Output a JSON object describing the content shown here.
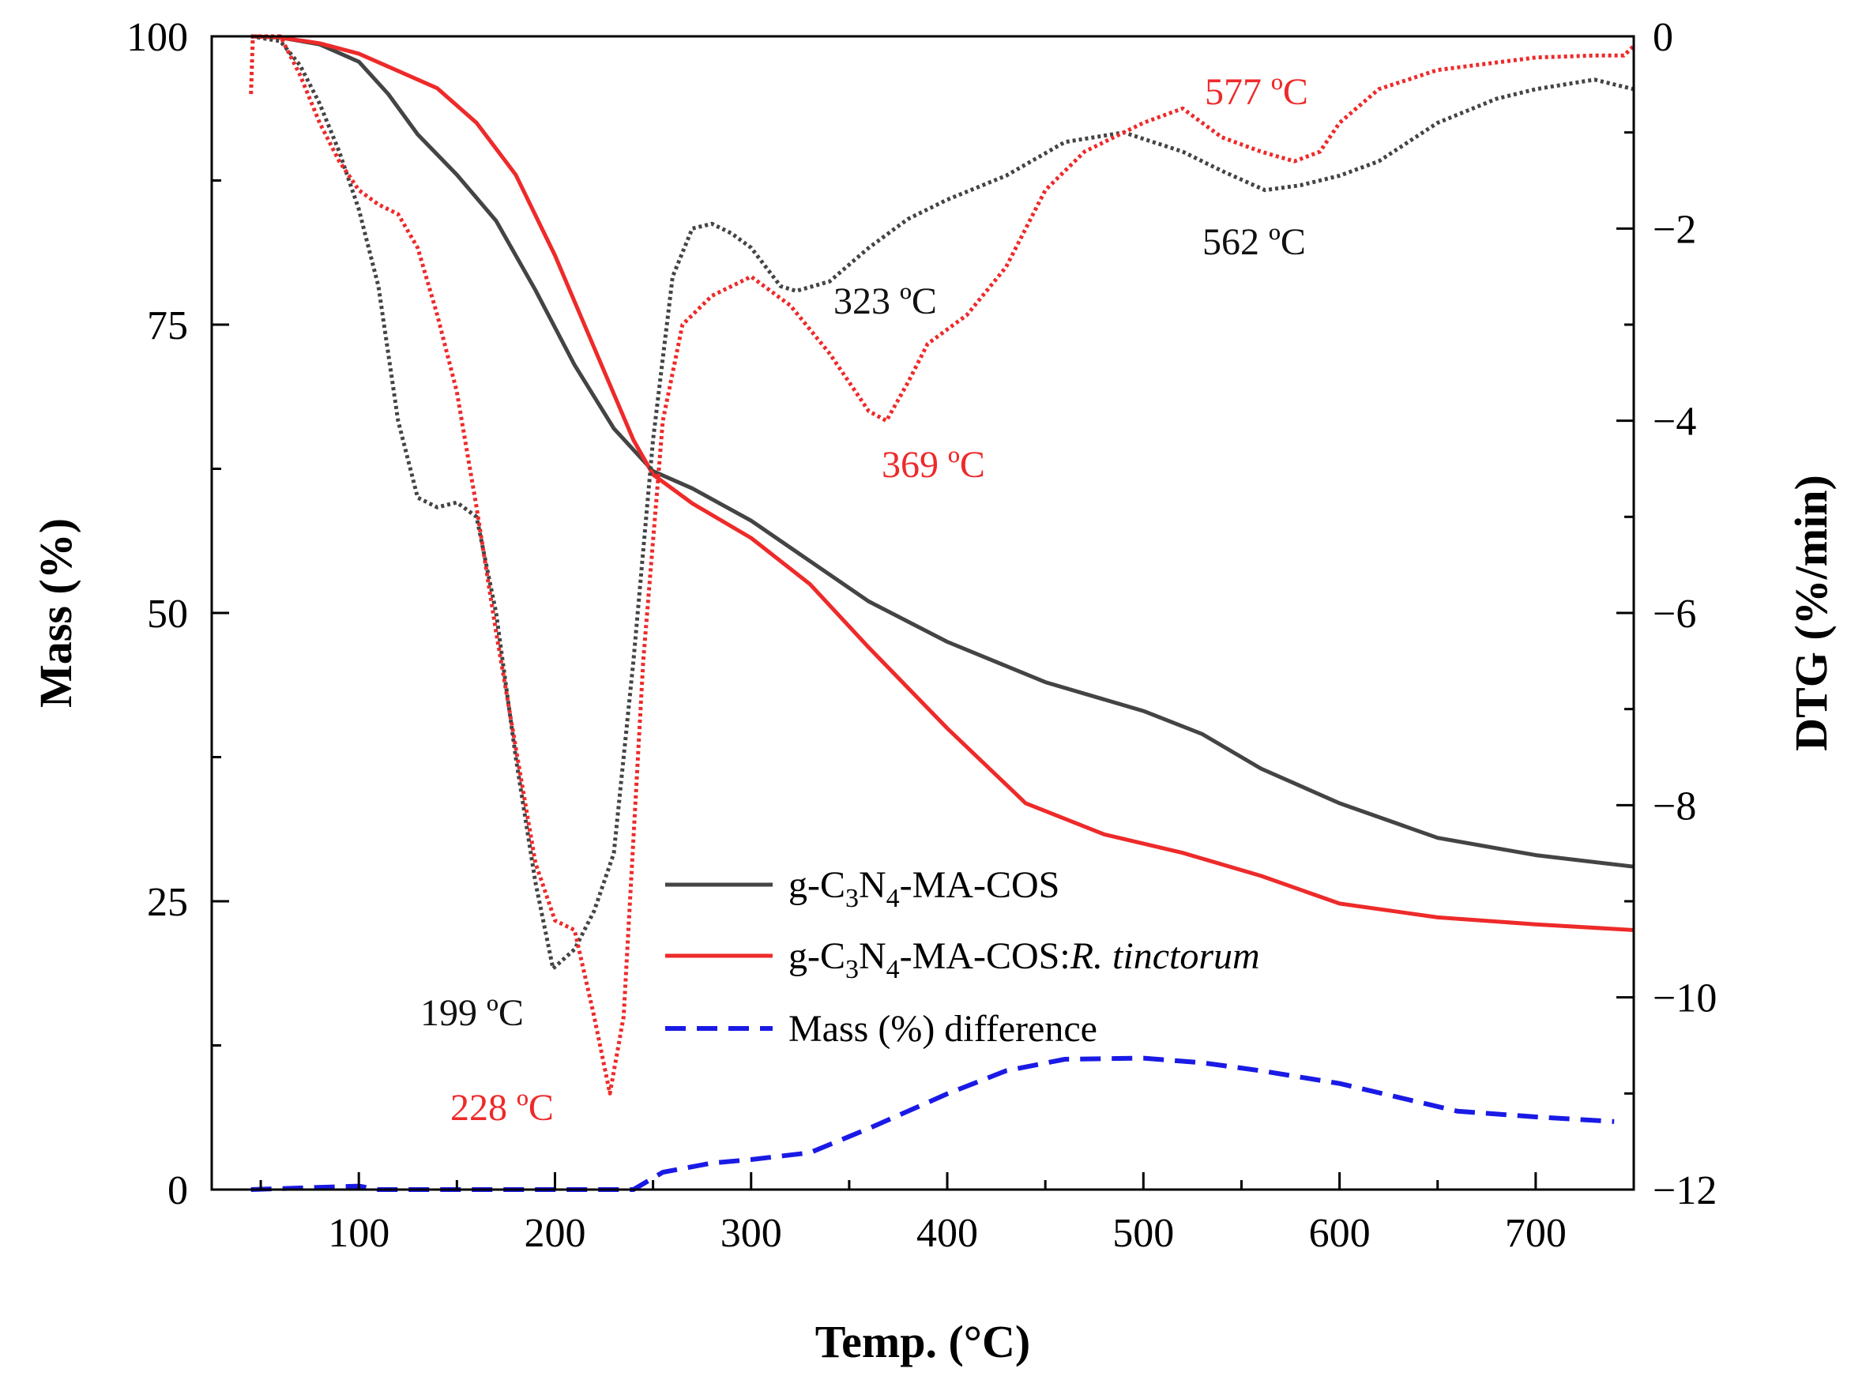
{
  "colors": {
    "axis": "#000000",
    "gray": "#444444",
    "red": "#ee2a2a",
    "blue": "#1a1ae6",
    "background": "#ffffff"
  },
  "chart_data": {
    "type": "line",
    "title": "",
    "xlabel": "Temp. (°C)",
    "ylabel_left": "Mass (%)",
    "ylabel_right": "DTG (%/min)",
    "xlim": [
      25,
      750
    ],
    "ylim_left": [
      0,
      100
    ],
    "ylim_right": [
      -12,
      0
    ],
    "x_ticks": [
      100,
      200,
      300,
      400,
      500,
      600,
      700
    ],
    "y_ticks_left": [
      0,
      25,
      50,
      75,
      100
    ],
    "y_ticks_right": [
      0,
      -2,
      -4,
      -6,
      -8,
      -10,
      -12
    ],
    "y_tick_labels_right": [
      "0",
      "−2",
      "−4",
      "−6",
      "−8",
      "−10",
      "−12"
    ],
    "grid": false,
    "legend": {
      "position": "lower-center",
      "entries": [
        {
          "key": "s1",
          "label_parts": [
            "g-C",
            "3",
            "N",
            "4",
            "-MA-COS"
          ]
        },
        {
          "key": "s2",
          "label_parts": [
            "g-C",
            "3",
            "N",
            "4",
            "-MA-COS:",
            "R. tinctorum"
          ]
        },
        {
          "key": "s3",
          "label": "Mass (%) difference"
        }
      ]
    },
    "series": [
      {
        "key": "s1",
        "name": "g-C3N4-MA-COS (mass)",
        "axis": "left",
        "style": "solid",
        "color": "gray",
        "points": [
          [
            45,
            100
          ],
          [
            60,
            99.9
          ],
          [
            80,
            99.3
          ],
          [
            100,
            97.8
          ],
          [
            115,
            95
          ],
          [
            130,
            91.5
          ],
          [
            150,
            88
          ],
          [
            170,
            84
          ],
          [
            190,
            78
          ],
          [
            210,
            71.5
          ],
          [
            230,
            66
          ],
          [
            250,
            62.3
          ],
          [
            270,
            60.8
          ],
          [
            300,
            58
          ],
          [
            330,
            54.5
          ],
          [
            360,
            51
          ],
          [
            400,
            47.5
          ],
          [
            450,
            44
          ],
          [
            500,
            41.5
          ],
          [
            530,
            39.5
          ],
          [
            560,
            36.5
          ],
          [
            600,
            33.5
          ],
          [
            650,
            30.5
          ],
          [
            700,
            29
          ],
          [
            750,
            28
          ]
        ]
      },
      {
        "key": "s2",
        "name": "g-C3N4-MA-COS:R. tinctorum (mass)",
        "axis": "left",
        "style": "solid",
        "color": "red",
        "points": [
          [
            45,
            100
          ],
          [
            60,
            99.9
          ],
          [
            80,
            99.4
          ],
          [
            100,
            98.5
          ],
          [
            120,
            97
          ],
          [
            140,
            95.5
          ],
          [
            160,
            92.5
          ],
          [
            180,
            88
          ],
          [
            200,
            81
          ],
          [
            220,
            73
          ],
          [
            240,
            65
          ],
          [
            250,
            62
          ],
          [
            270,
            59.5
          ],
          [
            300,
            56.5
          ],
          [
            330,
            52.5
          ],
          [
            360,
            47
          ],
          [
            400,
            40
          ],
          [
            440,
            33.5
          ],
          [
            480,
            30.8
          ],
          [
            520,
            29.2
          ],
          [
            560,
            27.2
          ],
          [
            600,
            24.8
          ],
          [
            650,
            23.6
          ],
          [
            700,
            23
          ],
          [
            750,
            22.5
          ]
        ]
      },
      {
        "key": "s1_dtg",
        "name": "g-C3N4-MA-COS (DTG)",
        "axis": "right",
        "style": "dotted",
        "color": "gray",
        "points": [
          [
            45,
            0
          ],
          [
            60,
            -0.05
          ],
          [
            70,
            -0.3
          ],
          [
            80,
            -0.7
          ],
          [
            90,
            -1.2
          ],
          [
            100,
            -1.8
          ],
          [
            110,
            -2.6
          ],
          [
            120,
            -4
          ],
          [
            130,
            -4.8
          ],
          [
            140,
            -4.9
          ],
          [
            150,
            -4.85
          ],
          [
            160,
            -5.0
          ],
          [
            170,
            -6
          ],
          [
            180,
            -7.5
          ],
          [
            190,
            -8.8
          ],
          [
            199,
            -9.7
          ],
          [
            210,
            -9.5
          ],
          [
            220,
            -9.1
          ],
          [
            230,
            -8.5
          ],
          [
            240,
            -6.5
          ],
          [
            250,
            -4.2
          ],
          [
            260,
            -2.5
          ],
          [
            270,
            -2.0
          ],
          [
            280,
            -1.95
          ],
          [
            290,
            -2.05
          ],
          [
            300,
            -2.2
          ],
          [
            315,
            -2.6
          ],
          [
            323,
            -2.65
          ],
          [
            340,
            -2.55
          ],
          [
            360,
            -2.2
          ],
          [
            380,
            -1.9
          ],
          [
            400,
            -1.7
          ],
          [
            430,
            -1.45
          ],
          [
            460,
            -1.1
          ],
          [
            490,
            -1.0
          ],
          [
            520,
            -1.2
          ],
          [
            540,
            -1.4
          ],
          [
            562,
            -1.6
          ],
          [
            580,
            -1.55
          ],
          [
            600,
            -1.45
          ],
          [
            620,
            -1.3
          ],
          [
            650,
            -0.9
          ],
          [
            680,
            -0.65
          ],
          [
            700,
            -0.55
          ],
          [
            730,
            -0.45
          ],
          [
            750,
            -0.55
          ]
        ]
      },
      {
        "key": "s2_dtg",
        "name": "g-C3N4-MA-COS:R. tinctorum (DTG)",
        "axis": "right",
        "style": "dotted",
        "color": "red",
        "points": [
          [
            45,
            -0.6
          ],
          [
            46,
            0
          ],
          [
            60,
            0
          ],
          [
            70,
            -0.4
          ],
          [
            80,
            -0.9
          ],
          [
            90,
            -1.3
          ],
          [
            100,
            -1.6
          ],
          [
            110,
            -1.75
          ],
          [
            120,
            -1.85
          ],
          [
            130,
            -2.2
          ],
          [
            140,
            -2.9
          ],
          [
            150,
            -3.7
          ],
          [
            160,
            -4.9
          ],
          [
            170,
            -6.2
          ],
          [
            180,
            -7.4
          ],
          [
            190,
            -8.6
          ],
          [
            200,
            -9.2
          ],
          [
            210,
            -9.3
          ],
          [
            220,
            -10.2
          ],
          [
            228,
            -11.0
          ],
          [
            235,
            -10.2
          ],
          [
            245,
            -6.5
          ],
          [
            255,
            -4.0
          ],
          [
            265,
            -3.0
          ],
          [
            280,
            -2.7
          ],
          [
            300,
            -2.5
          ],
          [
            320,
            -2.8
          ],
          [
            340,
            -3.3
          ],
          [
            360,
            -3.9
          ],
          [
            369,
            -4.0
          ],
          [
            380,
            -3.6
          ],
          [
            390,
            -3.2
          ],
          [
            410,
            -2.9
          ],
          [
            430,
            -2.4
          ],
          [
            450,
            -1.6
          ],
          [
            470,
            -1.2
          ],
          [
            500,
            -0.9
          ],
          [
            520,
            -0.75
          ],
          [
            540,
            -1.05
          ],
          [
            560,
            -1.2
          ],
          [
            577,
            -1.3
          ],
          [
            590,
            -1.2
          ],
          [
            600,
            -0.9
          ],
          [
            620,
            -0.55
          ],
          [
            650,
            -0.35
          ],
          [
            700,
            -0.22
          ],
          [
            730,
            -0.2
          ],
          [
            745,
            -0.2
          ],
          [
            750,
            -0.1
          ]
        ]
      },
      {
        "key": "s3",
        "name": "Mass (%) difference",
        "axis": "left",
        "style": "dashed",
        "color": "blue",
        "points": [
          [
            45,
            0
          ],
          [
            100,
            0.3
          ],
          [
            110,
            0
          ],
          [
            240,
            0
          ],
          [
            255,
            1.5
          ],
          [
            280,
            2.3
          ],
          [
            300,
            2.6
          ],
          [
            330,
            3.2
          ],
          [
            360,
            5.3
          ],
          [
            400,
            8.3
          ],
          [
            430,
            10.3
          ],
          [
            460,
            11.3
          ],
          [
            500,
            11.4
          ],
          [
            530,
            11
          ],
          [
            560,
            10.3
          ],
          [
            600,
            9.2
          ],
          [
            630,
            8
          ],
          [
            660,
            6.8
          ],
          [
            700,
            6.3
          ],
          [
            740,
            5.9
          ]
        ]
      }
    ],
    "annotations": [
      {
        "text": "577 ºC",
        "color": "red"
      },
      {
        "text": "562 ºC",
        "color": "gray"
      },
      {
        "text": "323 ºC",
        "color": "gray"
      },
      {
        "text": "369 ºC",
        "color": "red"
      },
      {
        "text": "199 ºC",
        "color": "gray"
      },
      {
        "text": "228 ºC",
        "color": "red"
      }
    ]
  }
}
